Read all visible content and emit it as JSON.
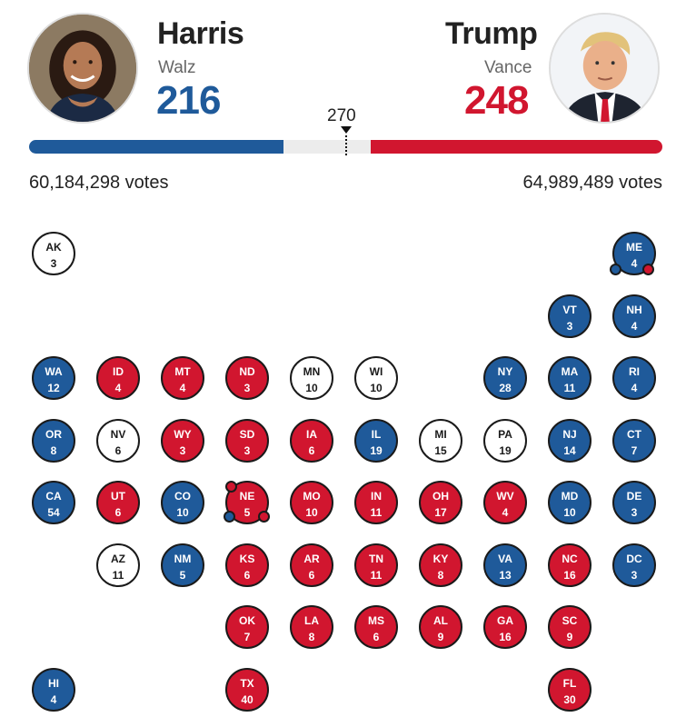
{
  "colors": {
    "democrat": "#1f5a9a",
    "republican": "#d1162f",
    "undecided": "#ffffff"
  },
  "democrat": {
    "name": "Harris",
    "running_mate": "Walz",
    "electoral_votes": "216",
    "popular_votes": "60,184,298 votes",
    "electoral_value": 216,
    "photo_icon": "harris-portrait-icon"
  },
  "republican": {
    "name": "Trump",
    "running_mate": "Vance",
    "electoral_votes": "248",
    "popular_votes": "64,989,489 votes",
    "electoral_value": 248,
    "photo_icon": "trump-portrait-icon"
  },
  "threshold": {
    "label": "270",
    "value": 270,
    "total": 538
  },
  "states": [
    {
      "abbr": "AK",
      "votes": "3",
      "party": "und",
      "row": 0,
      "col": 0
    },
    {
      "abbr": "ME",
      "votes": "4",
      "party": "dem",
      "row": 0,
      "col": 9,
      "split": [
        "dem",
        "rep"
      ]
    },
    {
      "abbr": "VT",
      "votes": "3",
      "party": "dem",
      "row": 1,
      "col": 8
    },
    {
      "abbr": "NH",
      "votes": "4",
      "party": "dem",
      "row": 1,
      "col": 9
    },
    {
      "abbr": "WA",
      "votes": "12",
      "party": "dem",
      "row": 2,
      "col": 0
    },
    {
      "abbr": "ID",
      "votes": "4",
      "party": "rep",
      "row": 2,
      "col": 1
    },
    {
      "abbr": "MT",
      "votes": "4",
      "party": "rep",
      "row": 2,
      "col": 2
    },
    {
      "abbr": "ND",
      "votes": "3",
      "party": "rep",
      "row": 2,
      "col": 3
    },
    {
      "abbr": "MN",
      "votes": "10",
      "party": "und",
      "row": 2,
      "col": 4
    },
    {
      "abbr": "WI",
      "votes": "10",
      "party": "und",
      "row": 2,
      "col": 5
    },
    {
      "abbr": "NY",
      "votes": "28",
      "party": "dem",
      "row": 2,
      "col": 7
    },
    {
      "abbr": "MA",
      "votes": "11",
      "party": "dem",
      "row": 2,
      "col": 8
    },
    {
      "abbr": "RI",
      "votes": "4",
      "party": "dem",
      "row": 2,
      "col": 9
    },
    {
      "abbr": "OR",
      "votes": "8",
      "party": "dem",
      "row": 3,
      "col": 0
    },
    {
      "abbr": "NV",
      "votes": "6",
      "party": "und",
      "row": 3,
      "col": 1
    },
    {
      "abbr": "WY",
      "votes": "3",
      "party": "rep",
      "row": 3,
      "col": 2
    },
    {
      "abbr": "SD",
      "votes": "3",
      "party": "rep",
      "row": 3,
      "col": 3
    },
    {
      "abbr": "IA",
      "votes": "6",
      "party": "rep",
      "row": 3,
      "col": 4
    },
    {
      "abbr": "IL",
      "votes": "19",
      "party": "dem",
      "row": 3,
      "col": 5
    },
    {
      "abbr": "MI",
      "votes": "15",
      "party": "und",
      "row": 3,
      "col": 6
    },
    {
      "abbr": "PA",
      "votes": "19",
      "party": "und",
      "row": 3,
      "col": 7
    },
    {
      "abbr": "NJ",
      "votes": "14",
      "party": "dem",
      "row": 3,
      "col": 8
    },
    {
      "abbr": "CT",
      "votes": "7",
      "party": "dem",
      "row": 3,
      "col": 9
    },
    {
      "abbr": "CA",
      "votes": "54",
      "party": "dem",
      "row": 4,
      "col": 0
    },
    {
      "abbr": "UT",
      "votes": "6",
      "party": "rep",
      "row": 4,
      "col": 1
    },
    {
      "abbr": "CO",
      "votes": "10",
      "party": "dem",
      "row": 4,
      "col": 2
    },
    {
      "abbr": "NE",
      "votes": "5",
      "party": "rep",
      "row": 4,
      "col": 3,
      "split": [
        "rep",
        "dem",
        "rep"
      ]
    },
    {
      "abbr": "MO",
      "votes": "10",
      "party": "rep",
      "row": 4,
      "col": 4
    },
    {
      "abbr": "IN",
      "votes": "11",
      "party": "rep",
      "row": 4,
      "col": 5
    },
    {
      "abbr": "OH",
      "votes": "17",
      "party": "rep",
      "row": 4,
      "col": 6
    },
    {
      "abbr": "WV",
      "votes": "4",
      "party": "rep",
      "row": 4,
      "col": 7
    },
    {
      "abbr": "MD",
      "votes": "10",
      "party": "dem",
      "row": 4,
      "col": 8
    },
    {
      "abbr": "DE",
      "votes": "3",
      "party": "dem",
      "row": 4,
      "col": 9
    },
    {
      "abbr": "AZ",
      "votes": "11",
      "party": "und",
      "row": 5,
      "col": 1
    },
    {
      "abbr": "NM",
      "votes": "5",
      "party": "dem",
      "row": 5,
      "col": 2
    },
    {
      "abbr": "KS",
      "votes": "6",
      "party": "rep",
      "row": 5,
      "col": 3
    },
    {
      "abbr": "AR",
      "votes": "6",
      "party": "rep",
      "row": 5,
      "col": 4
    },
    {
      "abbr": "TN",
      "votes": "11",
      "party": "rep",
      "row": 5,
      "col": 5
    },
    {
      "abbr": "KY",
      "votes": "8",
      "party": "rep",
      "row": 5,
      "col": 6
    },
    {
      "abbr": "VA",
      "votes": "13",
      "party": "dem",
      "row": 5,
      "col": 7
    },
    {
      "abbr": "NC",
      "votes": "16",
      "party": "rep",
      "row": 5,
      "col": 8
    },
    {
      "abbr": "DC",
      "votes": "3",
      "party": "dem",
      "row": 5,
      "col": 9
    },
    {
      "abbr": "OK",
      "votes": "7",
      "party": "rep",
      "row": 6,
      "col": 3
    },
    {
      "abbr": "LA",
      "votes": "8",
      "party": "rep",
      "row": 6,
      "col": 4
    },
    {
      "abbr": "MS",
      "votes": "6",
      "party": "rep",
      "row": 6,
      "col": 5
    },
    {
      "abbr": "AL",
      "votes": "9",
      "party": "rep",
      "row": 6,
      "col": 6
    },
    {
      "abbr": "GA",
      "votes": "16",
      "party": "rep",
      "row": 6,
      "col": 7
    },
    {
      "abbr": "SC",
      "votes": "9",
      "party": "rep",
      "row": 6,
      "col": 8
    },
    {
      "abbr": "HI",
      "votes": "4",
      "party": "dem",
      "row": 7,
      "col": 0
    },
    {
      "abbr": "TX",
      "votes": "40",
      "party": "rep",
      "row": 7,
      "col": 3
    },
    {
      "abbr": "FL",
      "votes": "30",
      "party": "rep",
      "row": 7,
      "col": 8
    }
  ]
}
